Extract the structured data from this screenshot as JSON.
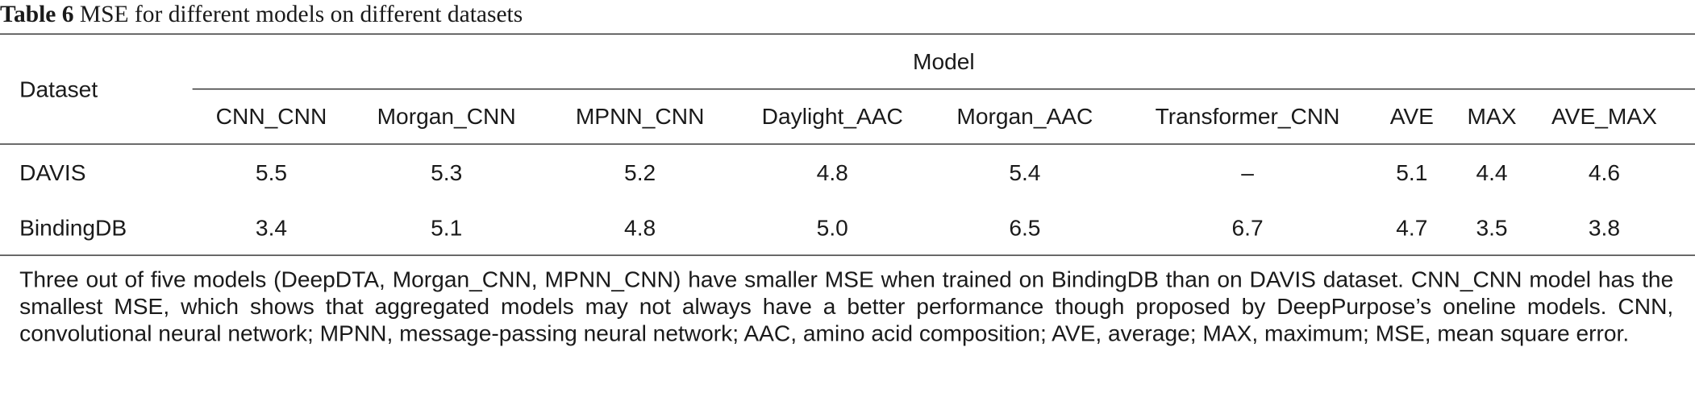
{
  "caption": {
    "label": "Table 6",
    "text": "MSE for different models on different datasets"
  },
  "table": {
    "row_header": "Dataset",
    "group_header": "Model",
    "columns": [
      "CNN_CNN",
      "Morgan_CNN",
      "MPNN_CNN",
      "Daylight_AAC",
      "Morgan_AAC",
      "Transformer_CNN",
      "AVE",
      "MAX",
      "AVE_MAX"
    ],
    "rows": [
      {
        "dataset": "DAVIS",
        "values": [
          "5.5",
          "5.3",
          "5.2",
          "4.8",
          "5.4",
          "–",
          "5.1",
          "4.4",
          "4.6"
        ]
      },
      {
        "dataset": "BindingDB",
        "values": [
          "3.4",
          "5.1",
          "4.8",
          "5.0",
          "6.5",
          "6.7",
          "4.7",
          "3.5",
          "3.8"
        ]
      }
    ]
  },
  "footnote": "Three out of five models (DeepDTA, Morgan_CNN, MPNN_CNN) have smaller MSE when trained on BindingDB than on DAVIS dataset. CNN_CNN model has the smallest MSE, which shows that aggregated models may not always have a better performance though proposed by DeepPurpose’s oneline models. CNN, convolutional neural network; MPNN, message-passing neural network; AAC, amino acid composition; AVE, average; MAX, maximum; MSE, mean square error."
}
